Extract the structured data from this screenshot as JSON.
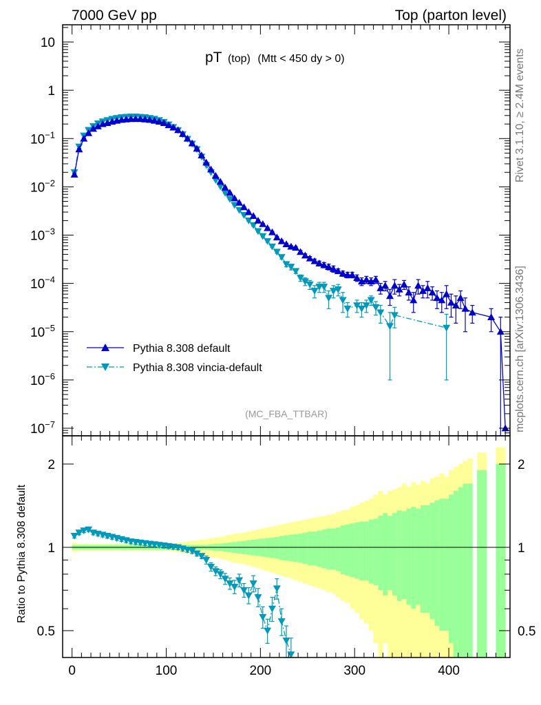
{
  "header": {
    "left": "7000 GeV pp",
    "right": "Top (parton level)"
  },
  "side_text": {
    "rivet": "Rivet 3.1.10, ≥ 2.4M events",
    "mcplots": "mcplots.cern.ch [arXiv:1306.3436]"
  },
  "plot_title": {
    "main": "pT",
    "sub": "(top)",
    "cut": "(Mtt < 450 dy > 0)"
  },
  "analysis_label": "(MC_FBA_TTBAR)",
  "ratio_ylabel": "Ratio to Pythia 8.308 default",
  "colors": {
    "default": "#0000cc",
    "vincia": "#0099bb",
    "band_outer": "#ffff99",
    "band_inner": "#99ff99",
    "frame": "#000000"
  },
  "chart_data": [
    {
      "type": "line",
      "panel": "main",
      "yscale": "log",
      "ylim": [
        1e-07,
        20
      ],
      "xlim": [
        -10,
        465
      ],
      "y_tick_labels": [
        "10",
        "1",
        "10^-1",
        "10^-2",
        "10^-3",
        "10^-4",
        "10^-5",
        "10^-6",
        "10^-7"
      ],
      "legend": {
        "placement": "lower-left",
        "entries": [
          "Pythia 8.308 default",
          "Pythia 8.308 vincia-default"
        ]
      },
      "series": [
        {
          "name": "Pythia 8.308 default",
          "marker": "triangle-up",
          "x": [
            2.5,
            7.5,
            12.5,
            17.5,
            22.5,
            27.5,
            32.5,
            37.5,
            42.5,
            47.5,
            52.5,
            57.5,
            62.5,
            67.5,
            72.5,
            77.5,
            82.5,
            87.5,
            92.5,
            97.5,
            102.5,
            107.5,
            112.5,
            117.5,
            122.5,
            127.5,
            132.5,
            137.5,
            142.5,
            147.5,
            152.5,
            157.5,
            162.5,
            167.5,
            172.5,
            177.5,
            182.5,
            187.5,
            192.5,
            197.5,
            202.5,
            207.5,
            212.5,
            217.5,
            222.5,
            227.5,
            232.5,
            237.5,
            242.5,
            247.5,
            252.5,
            257.5,
            262.5,
            267.5,
            272.5,
            277.5,
            282.5,
            287.5,
            292.5,
            297.5,
            302.5,
            307.5,
            312.5,
            317.5,
            322.5,
            327.5,
            332.5,
            337.5,
            342.5,
            347.5,
            352.5,
            357.5,
            362.5,
            367.5,
            372.5,
            377.5,
            382.5,
            387.5,
            392.5,
            397.5,
            402.5,
            407.5,
            412.5,
            417.5,
            425,
            445,
            455,
            460
          ],
          "y": [
            0.018,
            0.06,
            0.1,
            0.13,
            0.16,
            0.18,
            0.2,
            0.21,
            0.225,
            0.235,
            0.245,
            0.25,
            0.255,
            0.255,
            0.255,
            0.25,
            0.245,
            0.235,
            0.225,
            0.21,
            0.19,
            0.17,
            0.15,
            0.125,
            0.1,
            0.08,
            0.062,
            0.045,
            0.032,
            0.023,
            0.017,
            0.0128,
            0.0097,
            0.0076,
            0.0058,
            0.0047,
            0.0038,
            0.003,
            0.0025,
            0.002,
            0.0017,
            0.0014,
            0.00115,
            0.0009,
            0.00075,
            0.00065,
            0.00058,
            0.00055,
            0.00045,
            0.00038,
            0.00033,
            0.00029,
            0.00026,
            0.00024,
            0.00022,
            0.0002,
            0.00018,
            0.00016,
            0.00015,
            0.00015,
            0.00013,
            0.00011,
            0.00012,
            0.00011,
            0.00012,
            8e-05,
            9e-05,
            5.5e-05,
            9e-05,
            7.5e-05,
            9.5e-05,
            6.5e-05,
            4.5e-05,
            9e-05,
            7e-05,
            8e-05,
            6.5e-05,
            5e-05,
            4.5e-05,
            6e-05,
            4e-05,
            3.5e-05,
            5e-05,
            3e-05,
            2.5e-05,
            2e-05,
            1e-05,
            1e-07
          ],
          "yerr": [
            0.001,
            0.002,
            0.003,
            0.003,
            0.003,
            0.003,
            0.003,
            0.003,
            0.003,
            0.003,
            0.003,
            0.003,
            0.003,
            0.003,
            0.003,
            0.003,
            0.003,
            0.003,
            0.003,
            0.003,
            0.003,
            0.002,
            0.002,
            0.002,
            0.002,
            0.001,
            0.001,
            0.001,
            0.0005,
            0.0004,
            0.0003,
            0.0002,
            0.0002,
            0.00015,
            0.00012,
            0.0001,
            9e-05,
            8e-05,
            7e-05,
            6e-05,
            5e-05,
            5e-05,
            4e-05,
            4e-05,
            4e-05,
            3e-05,
            3e-05,
            3e-05,
            3e-05,
            3e-05,
            3e-05,
            3e-05,
            3e-05,
            3e-05,
            3e-05,
            3e-05,
            2e-05,
            2e-05,
            2e-05,
            2e-05,
            2e-05,
            2e-05,
            2e-05,
            2e-05,
            2e-05,
            2e-05,
            2e-05,
            2e-05,
            3e-05,
            2e-05,
            2e-05,
            2e-05,
            2e-05,
            3e-05,
            2e-05,
            3e-05,
            2e-05,
            2e-05,
            2e-05,
            3e-05,
            2e-05,
            2e-05,
            2e-05,
            2e-05,
            1e-05,
            1e-05,
            1e-05,
            0.0
          ]
        },
        {
          "name": "Pythia 8.308 vincia-default",
          "marker": "triangle-down",
          "x": [
            2.5,
            7.5,
            12.5,
            17.5,
            22.5,
            27.5,
            32.5,
            37.5,
            42.5,
            47.5,
            52.5,
            57.5,
            62.5,
            67.5,
            72.5,
            77.5,
            82.5,
            87.5,
            92.5,
            97.5,
            102.5,
            107.5,
            112.5,
            117.5,
            122.5,
            127.5,
            132.5,
            137.5,
            142.5,
            147.5,
            152.5,
            157.5,
            162.5,
            167.5,
            172.5,
            177.5,
            182.5,
            187.5,
            192.5,
            197.5,
            202.5,
            207.5,
            212.5,
            217.5,
            222.5,
            227.5,
            232.5,
            237.5,
            242.5,
            247.5,
            252.5,
            257.5,
            262.5,
            267.5,
            272.5,
            277.5,
            282.5,
            287.5,
            292.5,
            302.5,
            307.5,
            312.5,
            317.5,
            322.5,
            327.5,
            337.5,
            342.5,
            397.5
          ],
          "y": [
            0.02,
            0.068,
            0.115,
            0.15,
            0.18,
            0.205,
            0.225,
            0.24,
            0.255,
            0.265,
            0.275,
            0.28,
            0.285,
            0.285,
            0.28,
            0.275,
            0.265,
            0.255,
            0.24,
            0.22,
            0.195,
            0.172,
            0.148,
            0.122,
            0.098,
            0.078,
            0.06,
            0.042,
            0.028,
            0.02,
            0.0138,
            0.0102,
            0.0075,
            0.0056,
            0.0042,
            0.0033,
            0.0026,
            0.002,
            0.0016,
            0.0012,
            0.00095,
            0.00075,
            0.00058,
            0.00045,
            0.00035,
            0.00025,
            0.00022,
            0.00018,
            0.00013,
            0.00011,
            9.5e-05,
            7e-05,
            8.5e-05,
            8.5e-05,
            5e-05,
            7e-05,
            7.5e-05,
            4.5e-05,
            3e-05,
            3.5e-05,
            3e-05,
            3.5e-05,
            4.5e-05,
            3.2e-05,
            2.5e-05,
            1.3e-05,
            2.2e-05,
            1.2e-05
          ],
          "yerr": [
            0.001,
            0.002,
            0.003,
            0.003,
            0.003,
            0.003,
            0.003,
            0.003,
            0.003,
            0.003,
            0.003,
            0.003,
            0.003,
            0.003,
            0.003,
            0.003,
            0.003,
            0.003,
            0.003,
            0.003,
            0.003,
            0.002,
            0.002,
            0.002,
            0.002,
            0.001,
            0.001,
            0.001,
            0.0005,
            0.0004,
            0.0003,
            0.0002,
            0.0002,
            0.00015,
            0.0001,
            9e-05,
            8e-05,
            7e-05,
            6e-05,
            5e-05,
            4e-05,
            4e-05,
            3e-05,
            3e-05,
            3e-05,
            3e-05,
            3e-05,
            2e-05,
            2e-05,
            2e-05,
            2e-05,
            2e-05,
            2e-05,
            2e-05,
            2e-05,
            2e-05,
            2e-05,
            2e-05,
            1e-05,
            1e-05,
            1e-05,
            1e-05,
            1e-05,
            1e-05,
            1e-05,
            1.2e-05,
            1e-05,
            1.1e-05
          ]
        }
      ]
    },
    {
      "type": "line",
      "panel": "ratio",
      "yscale": "log",
      "ylim": [
        0.42,
        2.35
      ],
      "xlim": [
        -10,
        465
      ],
      "xlabel": "",
      "ylabel": "Ratio to Pythia 8.308 default",
      "x_tick_labels": [
        "0",
        "100",
        "200",
        "300",
        "400"
      ],
      "y_tick_labels": [
        "0.5",
        "1",
        "2"
      ],
      "reference_line": 1,
      "bands": {
        "x_edges": [
          0,
          5,
          10,
          15,
          20,
          25,
          30,
          35,
          40,
          45,
          50,
          55,
          60,
          65,
          70,
          75,
          80,
          85,
          90,
          95,
          100,
          105,
          110,
          115,
          120,
          125,
          130,
          135,
          140,
          145,
          150,
          155,
          160,
          165,
          170,
          175,
          180,
          185,
          190,
          195,
          200,
          205,
          210,
          215,
          220,
          225,
          230,
          235,
          240,
          245,
          250,
          255,
          260,
          265,
          270,
          275,
          280,
          285,
          290,
          295,
          300,
          305,
          310,
          315,
          320,
          325,
          330,
          335,
          340,
          345,
          350,
          355,
          360,
          365,
          370,
          375,
          380,
          385,
          390,
          395,
          400,
          405,
          410,
          415,
          420,
          425,
          430,
          435,
          440,
          445,
          450,
          455,
          460
        ],
        "inner_halfwidth": [
          0.02,
          0.02,
          0.02,
          0.02,
          0.02,
          0.02,
          0.02,
          0.02,
          0.02,
          0.02,
          0.02,
          0.02,
          0.02,
          0.02,
          0.02,
          0.02,
          0.02,
          0.02,
          0.02,
          0.02,
          0.02,
          0.02,
          0.02,
          0.02,
          0.02,
          0.02,
          0.02,
          0.02,
          0.02,
          0.025,
          0.03,
          0.03,
          0.035,
          0.04,
          0.045,
          0.05,
          0.055,
          0.06,
          0.065,
          0.07,
          0.075,
          0.08,
          0.085,
          0.09,
          0.1,
          0.105,
          0.11,
          0.115,
          0.12,
          0.13,
          0.14,
          0.14,
          0.15,
          0.16,
          0.17,
          0.17,
          0.18,
          0.2,
          0.21,
          0.22,
          0.23,
          0.24,
          0.24,
          0.26,
          0.27,
          0.3,
          0.33,
          0.3,
          0.33,
          0.36,
          0.35,
          0.38,
          0.4,
          0.38,
          0.42,
          0.42,
          0.45,
          0.48,
          0.5,
          0.5,
          0.55,
          0.6,
          0.65,
          0.7,
          0.7,
          0,
          0.9,
          0.9,
          0,
          0,
          1.0,
          1.0
        ],
        "outer_halfwidth": [
          0.04,
          0.03,
          0.03,
          0.03,
          0.03,
          0.03,
          0.03,
          0.03,
          0.03,
          0.03,
          0.03,
          0.03,
          0.03,
          0.03,
          0.03,
          0.03,
          0.03,
          0.03,
          0.03,
          0.03,
          0.03,
          0.035,
          0.04,
          0.045,
          0.05,
          0.055,
          0.06,
          0.065,
          0.07,
          0.08,
          0.085,
          0.09,
          0.1,
          0.11,
          0.12,
          0.125,
          0.13,
          0.14,
          0.15,
          0.16,
          0.17,
          0.18,
          0.19,
          0.2,
          0.21,
          0.22,
          0.23,
          0.24,
          0.25,
          0.26,
          0.27,
          0.28,
          0.29,
          0.3,
          0.31,
          0.32,
          0.34,
          0.36,
          0.37,
          0.4,
          0.42,
          0.45,
          0.47,
          0.5,
          0.55,
          0.6,
          0.55,
          0.6,
          0.62,
          0.65,
          0.7,
          0.66,
          0.72,
          0.68,
          0.74,
          0.7,
          0.78,
          0.8,
          0.85,
          0.8,
          0.9,
          0.95,
          1.0,
          1.05,
          1.1,
          0,
          1.2,
          1.2,
          0,
          0,
          1.3,
          1.3
        ]
      },
      "series": [
        {
          "name": "Pythia 8.308 vincia-default",
          "marker": "triangle-down",
          "x": [
            2.5,
            7.5,
            12.5,
            17.5,
            22.5,
            27.5,
            32.5,
            37.5,
            42.5,
            47.5,
            52.5,
            57.5,
            62.5,
            67.5,
            72.5,
            77.5,
            82.5,
            87.5,
            92.5,
            97.5,
            102.5,
            107.5,
            112.5,
            117.5,
            122.5,
            127.5,
            132.5,
            137.5,
            142.5,
            147.5,
            152.5,
            157.5,
            162.5,
            167.5,
            172.5,
            177.5,
            182.5,
            187.5,
            192.5,
            197.5,
            202.5,
            207.5,
            212.5,
            217.5,
            222.5,
            227.5,
            232.5
          ],
          "y": [
            1.1,
            1.13,
            1.15,
            1.16,
            1.13,
            1.12,
            1.11,
            1.1,
            1.09,
            1.08,
            1.07,
            1.06,
            1.05,
            1.045,
            1.04,
            1.035,
            1.03,
            1.025,
            1.02,
            1.015,
            1.01,
            1.005,
            1.0,
            0.99,
            0.98,
            0.97,
            0.95,
            0.93,
            0.9,
            0.85,
            0.82,
            0.8,
            0.77,
            0.74,
            0.72,
            0.76,
            0.7,
            0.67,
            0.74,
            0.66,
            0.56,
            0.5,
            0.6,
            0.71,
            0.54,
            0.46,
            0.41
          ],
          "yerr": [
            0.02,
            0.02,
            0.02,
            0.02,
            0.02,
            0.02,
            0.02,
            0.02,
            0.02,
            0.02,
            0.02,
            0.02,
            0.02,
            0.02,
            0.02,
            0.02,
            0.02,
            0.02,
            0.02,
            0.02,
            0.02,
            0.02,
            0.02,
            0.02,
            0.02,
            0.02,
            0.02,
            0.02,
            0.03,
            0.03,
            0.03,
            0.03,
            0.035,
            0.035,
            0.04,
            0.04,
            0.04,
            0.045,
            0.05,
            0.05,
            0.05,
            0.05,
            0.06,
            0.06,
            0.06,
            0.06,
            0.06
          ]
        }
      ]
    }
  ]
}
